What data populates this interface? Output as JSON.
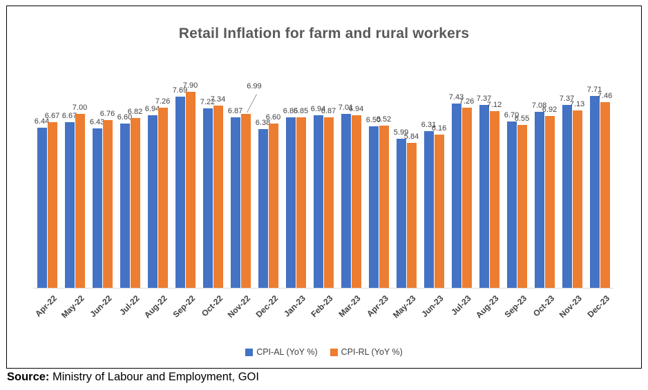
{
  "chart_data": {
    "type": "bar",
    "title": "Retail Inflation for farm and rural workers",
    "categories": [
      "Apr-22",
      "May-22",
      "Jun-22",
      "Jul-22",
      "Aug-22",
      "Sep-22",
      "Oct-22",
      "Nov-22",
      "Dec-22",
      "Jan-23",
      "Feb-23",
      "Mar-23",
      "Apr-23",
      "May-23",
      "Jun-23",
      "Jul-23",
      "Aug-23",
      "Sep-23",
      "Oct-23",
      "Nov-23",
      "Dec-23"
    ],
    "series": [
      {
        "name": "CPI-AL (YoY %)",
        "color": "#4472C4",
        "values": [
          6.44,
          6.67,
          6.43,
          6.6,
          6.94,
          7.69,
          7.22,
          6.87,
          6.38,
          6.85,
          6.94,
          7.01,
          6.5,
          5.99,
          6.31,
          7.43,
          7.37,
          6.7,
          7.08,
          7.37,
          7.71
        ]
      },
      {
        "name": "CPI-RL (YoY %)",
        "color": "#ED7D31",
        "values": [
          6.67,
          7.0,
          6.76,
          6.82,
          7.26,
          7.9,
          7.34,
          6.99,
          6.6,
          6.85,
          6.87,
          6.94,
          6.52,
          5.84,
          6.16,
          7.26,
          7.12,
          6.55,
          6.92,
          7.13,
          7.46
        ]
      }
    ],
    "ylim": [
      0,
      8.5
    ],
    "grid": false,
    "y_axis_visible": false,
    "data_labels": true,
    "legend_position": "bottom",
    "callouts": [
      {
        "series": 1,
        "index": 7
      }
    ]
  },
  "source": {
    "label": "Source:",
    "text": " Ministry of Labour and Employment, GOI"
  }
}
